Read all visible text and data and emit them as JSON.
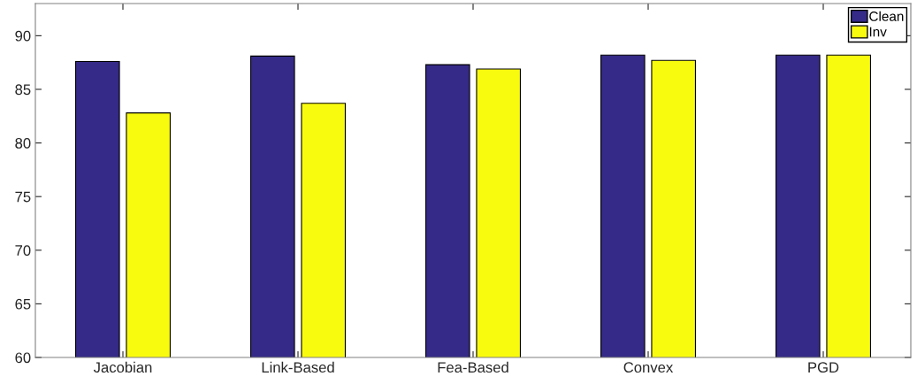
{
  "chart_data": {
    "type": "bar",
    "categories": [
      "Jacobian",
      "Link-Based",
      "Fea-Based",
      "Convex",
      "PGD"
    ],
    "series": [
      {
        "name": "Clean",
        "color": "#352a87",
        "values": [
          87.6,
          88.1,
          87.3,
          88.2,
          88.2
        ]
      },
      {
        "name": "Inv",
        "color": "#f9fb0e",
        "values": [
          82.8,
          83.7,
          86.9,
          87.7,
          88.2
        ]
      }
    ],
    "ylim": [
      60,
      93
    ],
    "yticks": [
      60,
      65,
      70,
      75,
      80,
      85,
      90
    ],
    "grid": false,
    "legend": "top right"
  }
}
